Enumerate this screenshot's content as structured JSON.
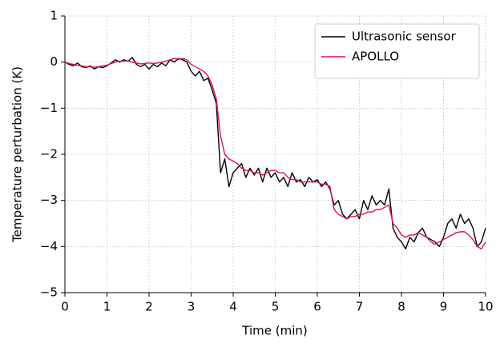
{
  "chart_data": {
    "type": "line",
    "x_label": "Time (min)",
    "y_label": "Temperature perturbation (K)",
    "xlim": [
      0,
      10
    ],
    "ylim": [
      -5,
      1
    ],
    "xticks": [
      0,
      1,
      2,
      3,
      4,
      5,
      6,
      7,
      8,
      9,
      10
    ],
    "yticks": [
      {
        "value": 1,
        "label": "1"
      },
      {
        "value": 0,
        "label": "0"
      },
      {
        "value": -1,
        "label": "−1"
      },
      {
        "value": -2,
        "label": "−2"
      },
      {
        "value": -3,
        "label": "−3"
      },
      {
        "value": -4,
        "label": "−4"
      },
      {
        "value": -5,
        "label": "−5"
      }
    ],
    "grid": true,
    "legend": "upper right",
    "x": [
      0,
      0.1,
      0.2,
      0.3,
      0.4,
      0.5,
      0.6,
      0.7,
      0.8,
      0.9,
      1,
      1.1,
      1.2,
      1.3,
      1.4,
      1.5,
      1.6,
      1.7,
      1.8,
      1.9,
      2,
      2.1,
      2.2,
      2.3,
      2.4,
      2.5,
      2.6,
      2.7,
      2.8,
      2.9,
      3,
      3.1,
      3.2,
      3.3,
      3.4,
      3.5,
      3.6,
      3.7,
      3.8,
      3.9,
      4,
      4.1,
      4.2,
      4.3,
      4.4,
      4.5,
      4.6,
      4.7,
      4.8,
      4.9,
      5,
      5.1,
      5.2,
      5.3,
      5.4,
      5.5,
      5.6,
      5.7,
      5.8,
      5.9,
      6,
      6.1,
      6.2,
      6.3,
      6.4,
      6.5,
      6.6,
      6.7,
      6.8,
      6.9,
      7,
      7.1,
      7.2,
      7.3,
      7.4,
      7.5,
      7.6,
      7.7,
      7.8,
      7.9,
      8,
      8.1,
      8.2,
      8.3,
      8.4,
      8.5,
      8.6,
      8.7,
      8.8,
      8.9,
      9,
      9.1,
      9.2,
      9.3,
      9.4,
      9.5,
      9.6,
      9.7,
      9.8,
      9.9,
      10
    ],
    "series": [
      {
        "name": "Ultrasonic sensor",
        "color": "#000000",
        "values": [
          0,
          -0.05,
          -0.08,
          -0.02,
          -0.1,
          -0.12,
          -0.08,
          -0.15,
          -0.1,
          -0.12,
          -0.08,
          -0.02,
          0.05,
          0,
          0.05,
          0.02,
          0.1,
          -0.05,
          -0.1,
          -0.05,
          -0.15,
          -0.05,
          -0.1,
          -0.02,
          -0.08,
          0.05,
          0,
          0.08,
          0.05,
          0,
          -0.2,
          -0.3,
          -0.2,
          -0.4,
          -0.35,
          -0.6,
          -0.9,
          -2.4,
          -2.1,
          -2.7,
          -2.4,
          -2.3,
          -2.2,
          -2.5,
          -2.3,
          -2.45,
          -2.3,
          -2.6,
          -2.3,
          -2.5,
          -2.4,
          -2.6,
          -2.5,
          -2.7,
          -2.4,
          -2.6,
          -2.55,
          -2.7,
          -2.5,
          -2.6,
          -2.55,
          -2.7,
          -2.6,
          -2.75,
          -3.1,
          -3,
          -3.3,
          -3.4,
          -3.3,
          -3.2,
          -3.4,
          -3,
          -3.2,
          -2.9,
          -3.1,
          -3,
          -3.1,
          -2.75,
          -3.6,
          -3.8,
          -3.9,
          -4.05,
          -3.8,
          -3.9,
          -3.7,
          -3.6,
          -3.8,
          -3.85,
          -3.9,
          -4,
          -3.8,
          -3.5,
          -3.4,
          -3.6,
          -3.3,
          -3.5,
          -3.4,
          -3.6,
          -4,
          -3.9,
          -3.6
        ]
      },
      {
        "name": "APOLLO",
        "color": "#dc143c",
        "values": [
          0,
          -0.03,
          -0.05,
          -0.07,
          -0.08,
          -0.1,
          -0.1,
          -0.11,
          -0.1,
          -0.08,
          -0.07,
          -0.03,
          0,
          0.02,
          0.02,
          0.03,
          0,
          -0.02,
          -0.04,
          -0.03,
          -0.02,
          -0.03,
          -0.02,
          0,
          0.02,
          0.05,
          0.08,
          0.06,
          0.08,
          0.05,
          -0.05,
          -0.1,
          -0.15,
          -0.2,
          -0.3,
          -0.5,
          -0.8,
          -1.6,
          -2,
          -2.1,
          -2.15,
          -2.2,
          -2.3,
          -2.35,
          -2.35,
          -2.4,
          -2.4,
          -2.45,
          -2.4,
          -2.35,
          -2.35,
          -2.4,
          -2.4,
          -2.5,
          -2.55,
          -2.55,
          -2.6,
          -2.6,
          -2.6,
          -2.6,
          -2.6,
          -2.65,
          -2.65,
          -2.7,
          -3.2,
          -3.3,
          -3.35,
          -3.4,
          -3.35,
          -3.35,
          -3.3,
          -3.3,
          -3.25,
          -3.25,
          -3.2,
          -3.2,
          -3.15,
          -3.1,
          -3.5,
          -3.6,
          -3.75,
          -3.8,
          -3.75,
          -3.75,
          -3.7,
          -3.75,
          -3.8,
          -3.9,
          -3.95,
          -3.9,
          -3.85,
          -3.8,
          -3.75,
          -3.7,
          -3.68,
          -3.68,
          -3.75,
          -3.85,
          -4,
          -4.05,
          -3.9
        ]
      }
    ]
  }
}
